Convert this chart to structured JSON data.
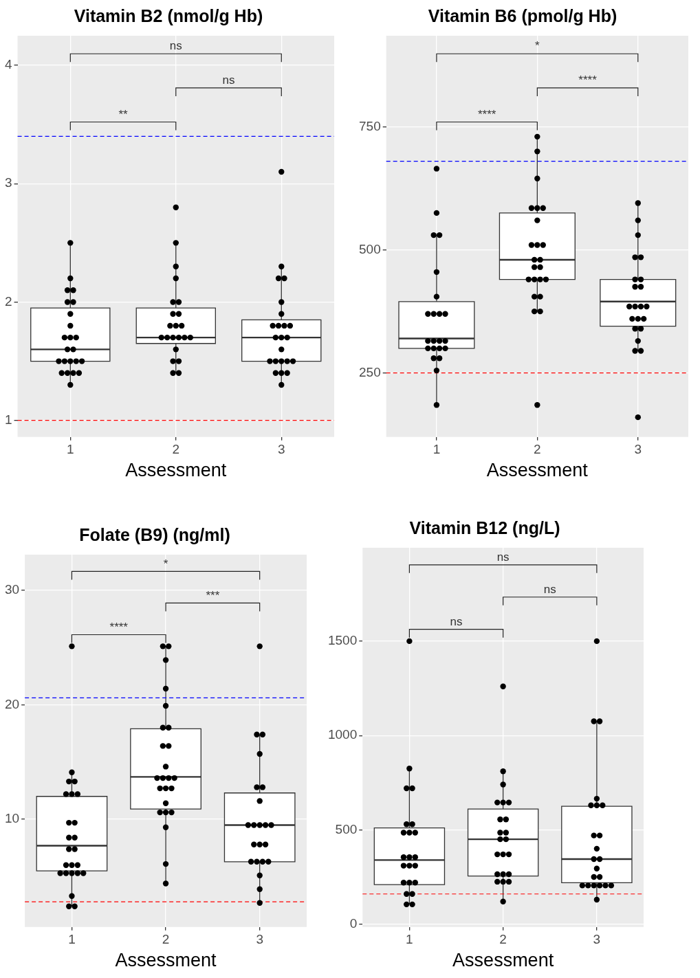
{
  "chart_data": [
    {
      "type": "box",
      "title": "Vitamin B2 (nmol/g Hb)",
      "xlabel": "Assessment",
      "categories": [
        "1",
        "2",
        "3"
      ],
      "boxes": [
        {
          "low": 1.3,
          "q1": 1.5,
          "median": 1.6,
          "q3": 1.95,
          "high": 2.5
        },
        {
          "low": 1.4,
          "q1": 1.65,
          "median": 1.7,
          "q3": 1.95,
          "high": 2.5
        },
        {
          "low": 1.3,
          "q1": 1.5,
          "median": 1.7,
          "q3": 1.85,
          "high": 2.3
        }
      ],
      "series": [
        {
          "type": "scatter",
          "color": "#000000",
          "x": [
            "1",
            "1",
            "1",
            "1",
            "1",
            "1",
            "1",
            "1",
            "1",
            "1",
            "1",
            "1",
            "1",
            "1",
            "1",
            "1",
            "1",
            "1",
            "1",
            "1",
            "1",
            "1",
            "1"
          ],
          "values": [
            1.3,
            1.4,
            1.4,
            1.4,
            1.4,
            1.5,
            1.5,
            1.5,
            1.5,
            1.5,
            1.6,
            1.6,
            1.7,
            1.7,
            1.7,
            1.8,
            1.9,
            2.0,
            2.0,
            2.1,
            2.1,
            2.2,
            2.5
          ]
        },
        {
          "type": "scatter",
          "color": "#000000",
          "x": [
            "2",
            "2",
            "2",
            "2",
            "2",
            "2",
            "2",
            "2",
            "2",
            "2",
            "2",
            "2",
            "2",
            "2",
            "2",
            "2",
            "2",
            "2",
            "2",
            "2",
            "2",
            "2"
          ],
          "values": [
            1.4,
            1.4,
            1.5,
            1.5,
            1.6,
            1.7,
            1.7,
            1.7,
            1.7,
            1.7,
            1.7,
            1.8,
            1.8,
            1.8,
            1.9,
            1.9,
            2.0,
            2.0,
            2.2,
            2.3,
            2.5,
            2.8
          ]
        },
        {
          "type": "scatter",
          "color": "#000000",
          "x": [
            "3",
            "3",
            "3",
            "3",
            "3",
            "3",
            "3",
            "3",
            "3",
            "3",
            "3",
            "3",
            "3",
            "3",
            "3",
            "3",
            "3",
            "3",
            "3",
            "3",
            "3",
            "3",
            "3"
          ],
          "values": [
            1.3,
            1.4,
            1.4,
            1.4,
            1.5,
            1.5,
            1.5,
            1.5,
            1.5,
            1.6,
            1.7,
            1.7,
            1.7,
            1.8,
            1.8,
            1.8,
            1.8,
            1.9,
            2.0,
            2.2,
            2.2,
            2.3,
            3.1
          ]
        }
      ],
      "ylim": [
        0.86,
        4.25
      ],
      "yticks": [
        1,
        2,
        3,
        4
      ],
      "grid": true,
      "marker": "circle",
      "ref_lines": [
        {
          "axis": "y",
          "value": 3.4,
          "color": "#0000ff",
          "line_style": "dashed"
        },
        {
          "axis": "y",
          "value": 1.0,
          "color": "#ff0000",
          "line_style": "dashed"
        }
      ],
      "annotations": [
        "ns",
        "ns",
        "**"
      ]
    },
    {
      "type": "box",
      "title": "Vitamin B6 (pmol/g Hb)",
      "xlabel": "Assessment",
      "categories": [
        "1",
        "2",
        "3"
      ],
      "boxes": [
        {
          "low": 185,
          "q1": 300,
          "median": 320,
          "q3": 395,
          "high": 530
        },
        {
          "low": 375,
          "q1": 440,
          "median": 480,
          "q3": 575,
          "high": 730
        },
        {
          "low": 295,
          "q1": 345,
          "median": 395,
          "q3": 440,
          "high": 595
        }
      ],
      "series": [
        {
          "type": "scatter",
          "color": "#000000",
          "x": [
            "1",
            "1",
            "1",
            "1",
            "1",
            "1",
            "1",
            "1",
            "1",
            "1",
            "1",
            "1",
            "1",
            "1",
            "1",
            "1",
            "1",
            "1",
            "1",
            "1",
            "1",
            "1"
          ],
          "values": [
            185,
            255,
            280,
            280,
            300,
            300,
            300,
            300,
            315,
            315,
            315,
            315,
            370,
            370,
            370,
            370,
            405,
            455,
            530,
            530,
            575,
            665
          ]
        },
        {
          "type": "scatter",
          "color": "#000000",
          "x": [
            "2",
            "2",
            "2",
            "2",
            "2",
            "2",
            "2",
            "2",
            "2",
            "2",
            "2",
            "2",
            "2",
            "2",
            "2",
            "2",
            "2",
            "2",
            "2",
            "2",
            "2",
            "2",
            "2"
          ],
          "values": [
            185,
            375,
            375,
            405,
            405,
            440,
            440,
            440,
            440,
            465,
            465,
            480,
            480,
            510,
            510,
            510,
            560,
            585,
            585,
            585,
            645,
            700,
            730
          ]
        },
        {
          "type": "scatter",
          "color": "#000000",
          "x": [
            "3",
            "3",
            "3",
            "3",
            "3",
            "3",
            "3",
            "3",
            "3",
            "3",
            "3",
            "3",
            "3",
            "3",
            "3",
            "3",
            "3",
            "3",
            "3",
            "3",
            "3",
            "3"
          ],
          "values": [
            160,
            295,
            295,
            315,
            340,
            340,
            360,
            360,
            360,
            385,
            385,
            385,
            385,
            425,
            425,
            440,
            440,
            485,
            485,
            530,
            560,
            595
          ]
        }
      ],
      "ylim": [
        120,
        935
      ],
      "yticks": [
        250,
        500,
        750
      ],
      "grid": true,
      "marker": "circle",
      "ref_lines": [
        {
          "axis": "y",
          "value": 680,
          "color": "#0000ff",
          "line_style": "dashed"
        },
        {
          "axis": "y",
          "value": 250,
          "color": "#ff0000",
          "line_style": "dashed"
        }
      ],
      "annotations": [
        "*",
        "****",
        "****"
      ]
    },
    {
      "type": "box",
      "title": "Folate (B9) (ng/ml)",
      "xlabel": "Assessment",
      "categories": [
        "1",
        "2",
        "3"
      ],
      "boxes": [
        {
          "low": 2.4,
          "q1": 5.5,
          "median": 7.7,
          "q3": 12.0,
          "high": 14.1
        },
        {
          "low": 4.4,
          "q1": 10.9,
          "median": 13.7,
          "q3": 17.9,
          "high": 25.1
        },
        {
          "low": 2.7,
          "q1": 6.3,
          "median": 9.5,
          "q3": 12.3,
          "high": 17.4
        }
      ],
      "series": [
        {
          "type": "scatter",
          "color": "#000000",
          "x": [
            "1",
            "1",
            "1",
            "1",
            "1",
            "1",
            "1",
            "1",
            "1",
            "1",
            "1",
            "1",
            "1",
            "1",
            "1",
            "1",
            "1",
            "1",
            "1",
            "1",
            "1",
            "1",
            "1",
            "1"
          ],
          "values": [
            2.4,
            2.4,
            3.3,
            5.3,
            5.3,
            5.3,
            5.3,
            5.3,
            6.0,
            6.0,
            6.0,
            7.4,
            7.4,
            8.4,
            8.4,
            9.7,
            9.7,
            12.2,
            12.2,
            12.2,
            13.3,
            13.3,
            14.1,
            25.1
          ]
        },
        {
          "type": "scatter",
          "color": "#000000",
          "x": [
            "2",
            "2",
            "2",
            "2",
            "2",
            "2",
            "2",
            "2",
            "2",
            "2",
            "2",
            "2",
            "2",
            "2",
            "2",
            "2",
            "2",
            "2",
            "2",
            "2",
            "2",
            "2",
            "2",
            "2"
          ],
          "values": [
            4.4,
            6.1,
            9.3,
            10.6,
            10.6,
            10.6,
            11.4,
            12.7,
            12.7,
            12.7,
            13.6,
            13.6,
            13.6,
            13.6,
            14.6,
            16.4,
            16.4,
            18.0,
            18.0,
            19.9,
            21.4,
            23.9,
            25.1,
            25.1
          ]
        },
        {
          "type": "scatter",
          "color": "#000000",
          "x": [
            "3",
            "3",
            "3",
            "3",
            "3",
            "3",
            "3",
            "3",
            "3",
            "3",
            "3",
            "3",
            "3",
            "3",
            "3",
            "3",
            "3",
            "3",
            "3",
            "3",
            "3",
            "3"
          ],
          "values": [
            2.7,
            3.9,
            5.1,
            6.3,
            6.3,
            6.3,
            6.3,
            7.8,
            7.8,
            7.8,
            9.5,
            9.5,
            9.5,
            9.5,
            9.5,
            11.6,
            12.8,
            12.8,
            15.7,
            17.4,
            17.4,
            25.1
          ]
        }
      ],
      "ylim": [
        0.6,
        33.1
      ],
      "yticks": [
        10,
        20,
        30
      ],
      "grid": true,
      "marker": "circle",
      "ref_lines": [
        {
          "axis": "y",
          "value": 20.6,
          "color": "#0000ff",
          "line_style": "dashed"
        },
        {
          "axis": "y",
          "value": 2.8,
          "color": "#ff0000",
          "line_style": "dashed"
        }
      ],
      "annotations": [
        "*",
        "***",
        "****"
      ]
    },
    {
      "type": "box",
      "title": "Vitamin B12 (ng/L)",
      "xlabel": "Assessment",
      "categories": [
        "1",
        "2",
        "3"
      ],
      "boxes": [
        {
          "low": 105,
          "q1": 210,
          "median": 340,
          "q3": 510,
          "high": 825
        },
        {
          "low": 120,
          "q1": 255,
          "median": 450,
          "q3": 610,
          "high": 810
        },
        {
          "low": 130,
          "q1": 220,
          "median": 345,
          "q3": 625,
          "high": 1075
        }
      ],
      "series": [
        {
          "type": "scatter",
          "color": "#000000",
          "x": [
            "1",
            "1",
            "1",
            "1",
            "1",
            "1",
            "1",
            "1",
            "1",
            "1",
            "1",
            "1",
            "1",
            "1",
            "1",
            "1",
            "1",
            "1",
            "1",
            "1",
            "1",
            "1"
          ],
          "values": [
            105,
            105,
            160,
            160,
            220,
            220,
            220,
            310,
            310,
            310,
            355,
            355,
            355,
            485,
            485,
            485,
            530,
            530,
            720,
            720,
            825,
            1500
          ]
        },
        {
          "type": "scatter",
          "color": "#000000",
          "x": [
            "2",
            "2",
            "2",
            "2",
            "2",
            "2",
            "2",
            "2",
            "2",
            "2",
            "2",
            "2",
            "2",
            "2",
            "2",
            "2",
            "2",
            "2",
            "2",
            "2",
            "2",
            "2"
          ],
          "values": [
            120,
            225,
            225,
            225,
            265,
            265,
            265,
            370,
            370,
            370,
            450,
            450,
            485,
            485,
            555,
            555,
            645,
            645,
            645,
            740,
            810,
            1260
          ]
        },
        {
          "type": "scatter",
          "color": "#000000",
          "x": [
            "3",
            "3",
            "3",
            "3",
            "3",
            "3",
            "3",
            "3",
            "3",
            "3",
            "3",
            "3",
            "3",
            "3",
            "3",
            "3",
            "3",
            "3",
            "3",
            "3",
            "3",
            "3"
          ],
          "values": [
            130,
            205,
            205,
            205,
            205,
            205,
            205,
            250,
            250,
            295,
            345,
            345,
            400,
            470,
            470,
            630,
            630,
            630,
            665,
            1075,
            1075,
            1500
          ]
        }
      ],
      "ylim": [
        -15,
        1995
      ],
      "yticks": [
        0,
        500,
        1000,
        1500
      ],
      "grid": true,
      "marker": "circle",
      "ref_lines": [
        {
          "axis": "y",
          "value": 160,
          "color": "#ff0000",
          "line_style": "dashed"
        }
      ],
      "annotations": [
        "ns",
        "ns",
        "ns"
      ]
    }
  ]
}
